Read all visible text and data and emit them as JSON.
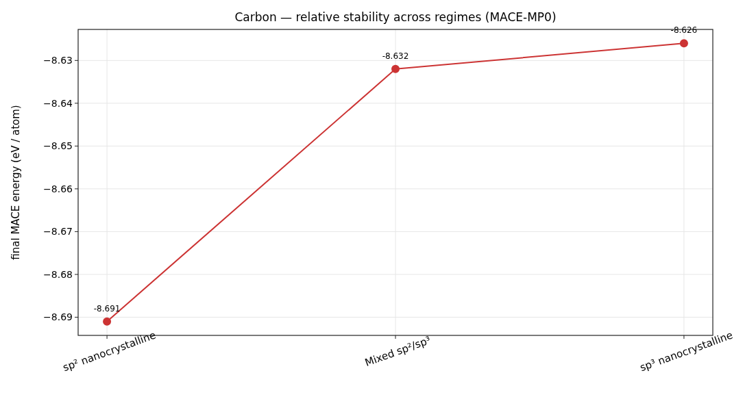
{
  "chart_data": {
    "type": "line",
    "title": "Carbon — relative stability across regimes (MACE-MP0)",
    "ylabel": "final MACE energy (eV / atom)",
    "categories": [
      "sp² nanocrystalline",
      "Mixed sp²/sp³",
      "sp³ nanocrystalline"
    ],
    "series": [
      {
        "color": "#cc3333",
        "values": [
          -8.691,
          -8.632,
          -8.626
        ]
      }
    ],
    "ylim": [
      -8.69425,
      -8.62275
    ],
    "yticks": [
      {
        "value": -8.69,
        "label": "−8.69"
      },
      {
        "value": -8.68,
        "label": "−8.68"
      },
      {
        "value": -8.67,
        "label": "−8.67"
      },
      {
        "value": -8.66,
        "label": "−8.66"
      },
      {
        "value": -8.65,
        "label": "−8.65"
      },
      {
        "value": -8.64,
        "label": "−8.64"
      },
      {
        "value": -8.63,
        "label": "−8.63"
      }
    ],
    "grid": true,
    "marker": "circle",
    "line_style": "solid",
    "data_labels": true
  }
}
